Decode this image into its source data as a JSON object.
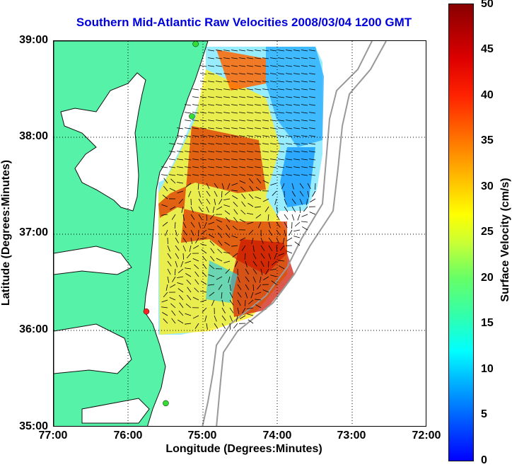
{
  "title": "Southern Mid-Atlantic Raw Velocities 2008/03/04 1200 GMT",
  "axes": {
    "xlabel": "Longitude (Degrees:Minutes)",
    "ylabel": "Latitude (Degrees:Minutes)",
    "x_ticks": [
      "77:00",
      "76:00",
      "75:00",
      "74:00",
      "73:00",
      "72:00"
    ],
    "y_ticks": [
      "39:00",
      "38:00",
      "37:00",
      "36:00",
      "35:00"
    ],
    "x_range_deg": [
      -77,
      -72
    ],
    "y_range_deg": [
      35,
      39
    ],
    "grid": "dotted"
  },
  "colorbar": {
    "label": "Surface Velocity (cm/s)",
    "ticks": [
      "50",
      "45",
      "40",
      "35",
      "30",
      "25",
      "20",
      "15",
      "10",
      "5",
      "0"
    ],
    "range": [
      0,
      50
    ]
  },
  "colors": {
    "land": "#55f2a8",
    "ocean": "#ffffff",
    "coast": "#111111",
    "bathymetry": "#999999",
    "title": "#0000dd"
  },
  "stations": [
    {
      "color": "#33dd33",
      "lon": -75.1,
      "lat": 38.97
    },
    {
      "color": "#33dd33",
      "lon": -75.15,
      "lat": 38.22
    },
    {
      "color": "#ff2222",
      "lon": -75.76,
      "lat": 36.2
    },
    {
      "color": "#33dd33",
      "lon": -75.5,
      "lat": 35.25
    }
  ]
}
